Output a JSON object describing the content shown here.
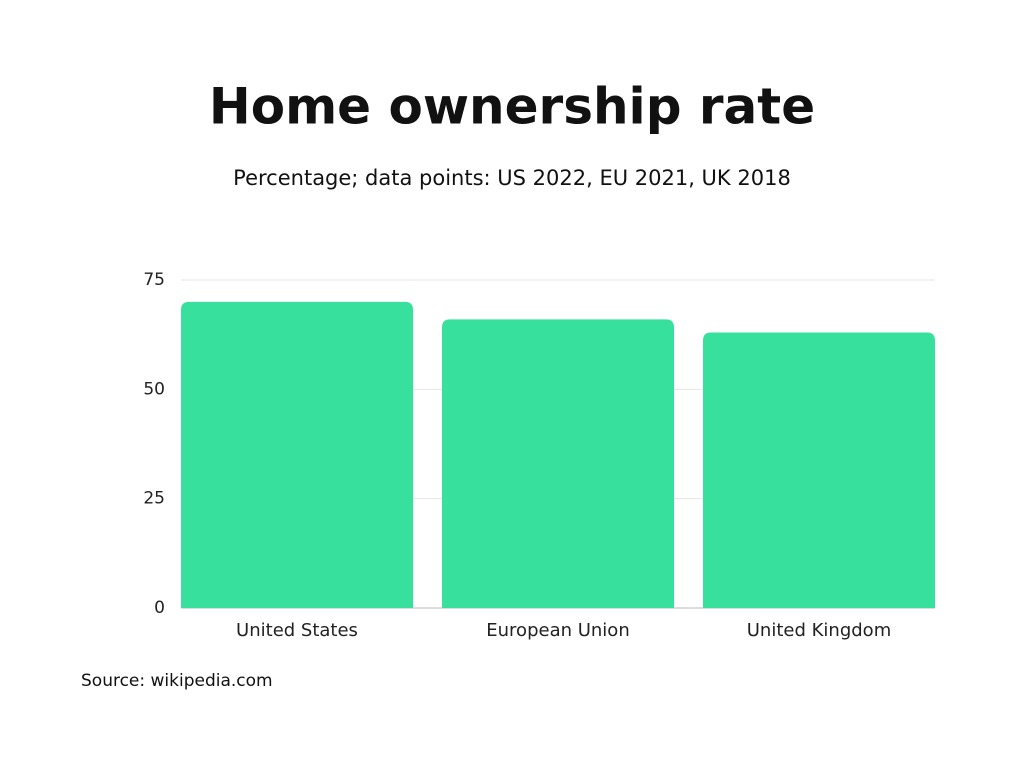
{
  "chart_data": {
    "type": "bar",
    "title": "Home ownership rate",
    "subtitle": "Percentage; data points: US 2022, EU 2021, UK 2018",
    "categories": [
      "United States",
      "European Union",
      "United Kingdom"
    ],
    "values": [
      70,
      66,
      63
    ],
    "color": "#38e09e",
    "ylim": [
      0,
      75
    ],
    "yticks": [
      0,
      25,
      50,
      75
    ],
    "grid": true,
    "source": "Source: wikipedia.com"
  }
}
